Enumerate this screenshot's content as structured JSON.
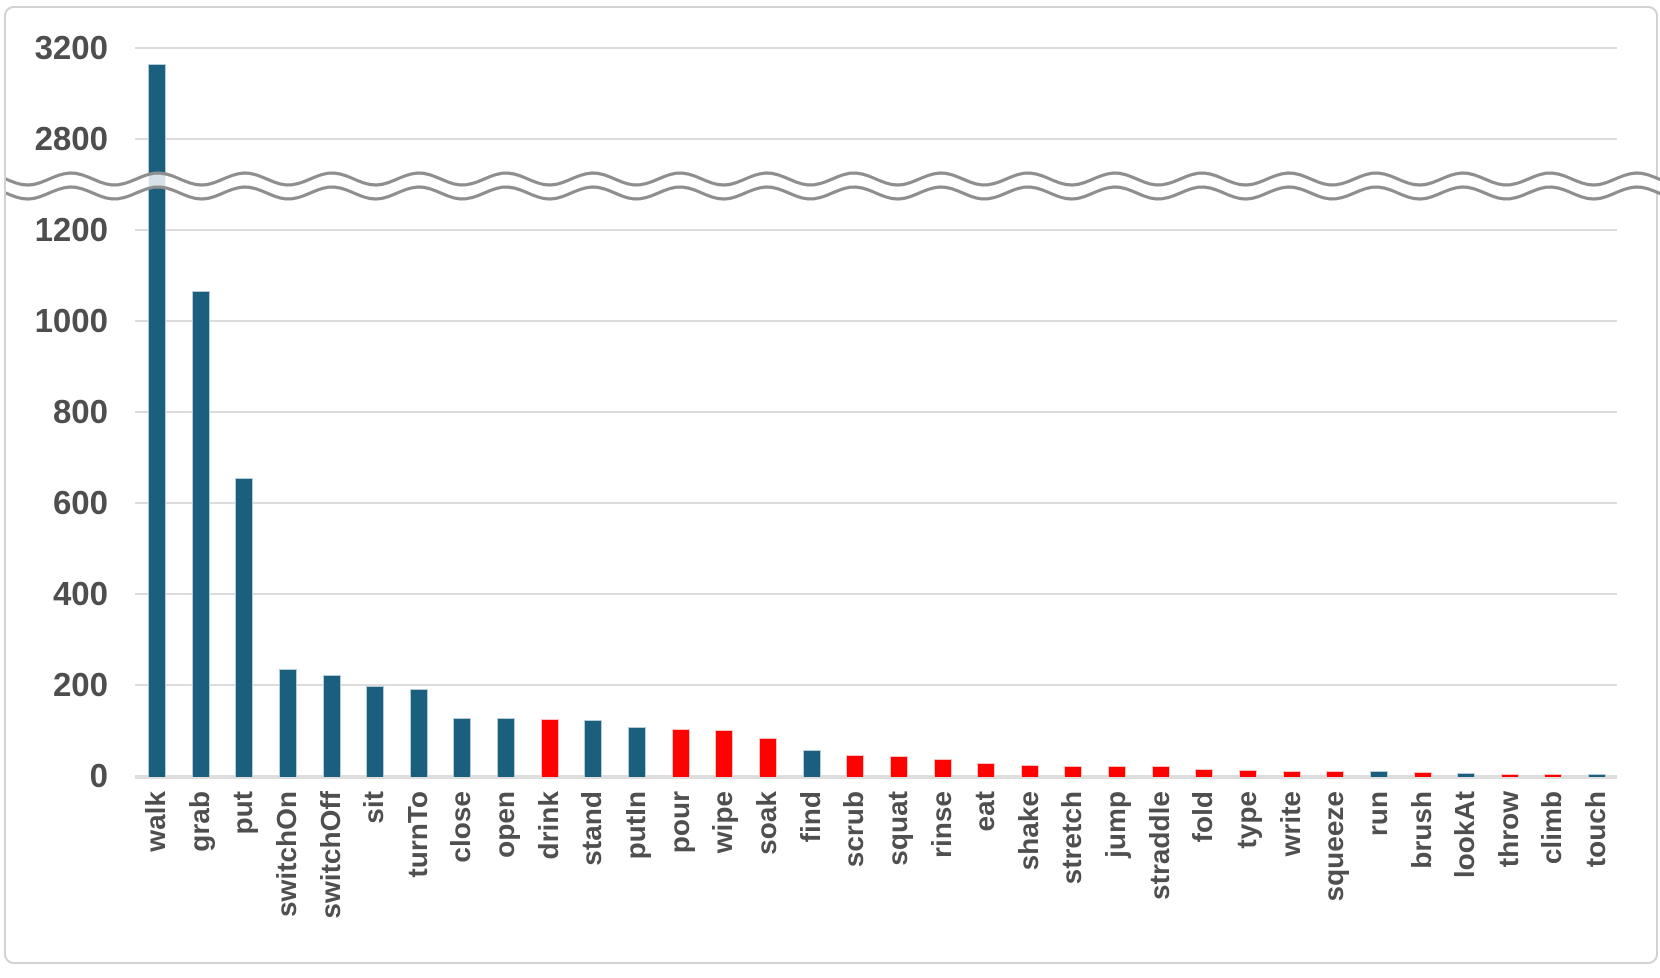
{
  "chart_data": {
    "type": "bar",
    "title": "",
    "xlabel": "",
    "ylabel": "",
    "grid": true,
    "legend": false,
    "axis_break": {
      "between": [
        1300,
        2700
      ],
      "style": "double-wavy-line"
    },
    "yticks_low": [
      0,
      200,
      400,
      600,
      800,
      1000,
      1200
    ],
    "yticks_high": [
      2800,
      3200
    ],
    "ylim": [
      0,
      3300
    ],
    "categories": [
      "walk",
      "grab",
      "put",
      "switchOn",
      "switchOff",
      "sit",
      "turnTo",
      "close",
      "open",
      "drink",
      "stand",
      "putIn",
      "pour",
      "wipe",
      "soak",
      "find",
      "scrub",
      "squat",
      "rinse",
      "eat",
      "shake",
      "stretch",
      "jump",
      "straddle",
      "fold",
      "type",
      "write",
      "squeeze",
      "run",
      "brush",
      "lookAt",
      "throw",
      "climb",
      "touch"
    ],
    "values": [
      3130,
      1065,
      655,
      235,
      222,
      197,
      191,
      128,
      127,
      126,
      124,
      108,
      104,
      101,
      84,
      57,
      46,
      43,
      37,
      29,
      24,
      23,
      23,
      22,
      15,
      13,
      12,
      12,
      10,
      8,
      6,
      5,
      4,
      3
    ],
    "bar_colors": [
      "blue",
      "blue",
      "blue",
      "blue",
      "blue",
      "blue",
      "blue",
      "blue",
      "blue",
      "red",
      "blue",
      "blue",
      "red",
      "red",
      "red",
      "blue",
      "red",
      "red",
      "red",
      "red",
      "red",
      "red",
      "red",
      "red",
      "red",
      "red",
      "red",
      "red",
      "blue",
      "red",
      "blue",
      "red",
      "red",
      "blue"
    ],
    "colors": {
      "blue": "#1a5f7e",
      "red": "#fc0200",
      "gridline": "#dcdcdc",
      "tick_label": "#4e4e4e",
      "wave": "#8e8e8e"
    }
  }
}
